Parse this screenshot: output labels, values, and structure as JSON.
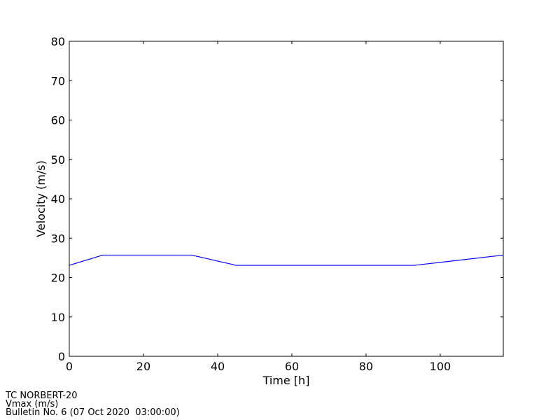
{
  "chart_data": {
    "type": "line",
    "title": "",
    "xlabel": "Time [h]",
    "ylabel": "Velocity (m/s)",
    "xlim": [
      0,
      117
    ],
    "ylim": [
      0,
      80
    ],
    "xticks": [
      0,
      20,
      40,
      60,
      80,
      100
    ],
    "yticks": [
      0,
      10,
      20,
      30,
      40,
      50,
      60,
      70,
      80
    ],
    "grid": false,
    "series": [
      {
        "color": "#0000ff",
        "x": [
          0,
          9,
          33,
          45,
          93,
          117
        ],
        "y": [
          23.1,
          25.7,
          25.7,
          23.1,
          23.1,
          25.7
        ]
      }
    ]
  },
  "footer": {
    "line1": "TC NORBERT-20",
    "line2": "Vmax (m/s)",
    "line3": "Bulletin No. 6 (07 Oct 2020  03:00:00)"
  }
}
